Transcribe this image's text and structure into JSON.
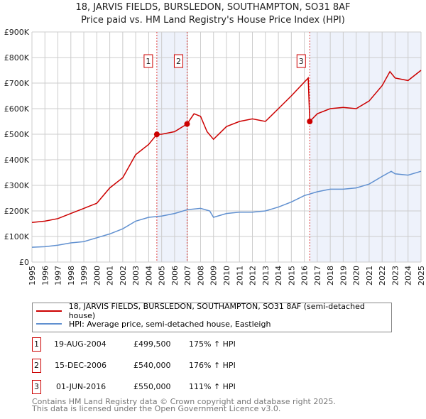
{
  "title": "18, JARVIS FIELDS, BURSLEDON, SOUTHAMPTON, SO31 8AF",
  "subtitle": "Price paid vs. HM Land Registry's House Price Index (HPI)",
  "colors": {
    "price": "#cc0000",
    "hpi": "#6090d0",
    "shade": "#eef2fb"
  },
  "chart_data": {
    "type": "line",
    "xlim": [
      1995,
      2025
    ],
    "ylim": [
      0,
      900000
    ],
    "yticks": [
      {
        "v": 0,
        "label": "£0"
      },
      {
        "v": 100000,
        "label": "£100K"
      },
      {
        "v": 200000,
        "label": "£200K"
      },
      {
        "v": 300000,
        "label": "£300K"
      },
      {
        "v": 400000,
        "label": "£400K"
      },
      {
        "v": 500000,
        "label": "£500K"
      },
      {
        "v": 600000,
        "label": "£600K"
      },
      {
        "v": 700000,
        "label": "£700K"
      },
      {
        "v": 800000,
        "label": "£800K"
      },
      {
        "v": 900000,
        "label": "£900K"
      }
    ],
    "xticks": [
      "1995",
      "1996",
      "1997",
      "1998",
      "1999",
      "2000",
      "2001",
      "2002",
      "2003",
      "2004",
      "2005",
      "2006",
      "2007",
      "2008",
      "2009",
      "2010",
      "2011",
      "2012",
      "2013",
      "2014",
      "2015",
      "2016",
      "2017",
      "2018",
      "2019",
      "2020",
      "2021",
      "2022",
      "2023",
      "2024",
      "2025"
    ],
    "series": [
      {
        "name": "18, JARVIS FIELDS, BURSLEDON, SOUTHAMPTON, SO31 8AF (semi-detached house)",
        "color": "#cc0000",
        "x": [
          1995,
          1996,
          1997,
          1998,
          1999,
          2000,
          2001,
          2002,
          2003,
          2004,
          2004.63,
          2005,
          2006,
          2006.96,
          2007.5,
          2008,
          2008.5,
          2009,
          2010,
          2011,
          2012,
          2013,
          2014,
          2015,
          2016.3,
          2016.42,
          2017,
          2018,
          2019,
          2020,
          2021,
          2022,
          2022.6,
          2023,
          2024,
          2025
        ],
        "y": [
          155000,
          160000,
          170000,
          190000,
          210000,
          230000,
          290000,
          330000,
          420000,
          460000,
          499500,
          500000,
          510000,
          540000,
          580000,
          570000,
          510000,
          480000,
          530000,
          550000,
          560000,
          550000,
          600000,
          650000,
          720000,
          550000,
          580000,
          600000,
          605000,
          600000,
          630000,
          690000,
          745000,
          720000,
          710000,
          750000
        ]
      },
      {
        "name": "HPI: Average price, semi-detached house, Eastleigh",
        "color": "#6090d0",
        "x": [
          1995,
          1996,
          1997,
          1998,
          1999,
          2000,
          2001,
          2002,
          2003,
          2004,
          2005,
          2006,
          2007,
          2008,
          2008.7,
          2009,
          2010,
          2011,
          2012,
          2013,
          2014,
          2015,
          2016,
          2017,
          2018,
          2019,
          2020,
          2021,
          2022,
          2022.7,
          2023,
          2024,
          2025
        ],
        "y": [
          58000,
          60000,
          66000,
          75000,
          80000,
          95000,
          110000,
          130000,
          160000,
          175000,
          180000,
          190000,
          205000,
          210000,
          200000,
          175000,
          190000,
          195000,
          195000,
          200000,
          215000,
          235000,
          260000,
          275000,
          285000,
          285000,
          290000,
          305000,
          335000,
          355000,
          345000,
          340000,
          355000
        ]
      }
    ],
    "sales": [
      {
        "id": "1",
        "x": 2004.63,
        "y": 499500
      },
      {
        "id": "2",
        "x": 2006.96,
        "y": 540000
      },
      {
        "id": "3",
        "x": 2016.42,
        "y": 550000
      }
    ],
    "shaded": [
      [
        2004.63,
        2006.96
      ],
      [
        2016.42,
        2025
      ]
    ]
  },
  "legend": [
    "18, JARVIS FIELDS, BURSLEDON, SOUTHAMPTON, SO31 8AF (semi-detached house)",
    "HPI: Average price, semi-detached house, Eastleigh"
  ],
  "transactions": [
    {
      "id": "1",
      "date": "19-AUG-2004",
      "price": "£499,500",
      "hpi": "175% ↑ HPI"
    },
    {
      "id": "2",
      "date": "15-DEC-2006",
      "price": "£540,000",
      "hpi": "176% ↑ HPI"
    },
    {
      "id": "3",
      "date": "01-JUN-2016",
      "price": "£550,000",
      "hpi": "111% ↑ HPI"
    }
  ],
  "footer": [
    "Contains HM Land Registry data © Crown copyright and database right 2025.",
    "This data is licensed under the Open Government Licence v3.0."
  ]
}
